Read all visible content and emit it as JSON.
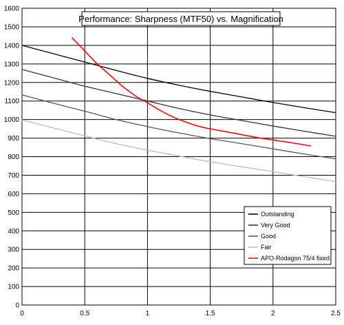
{
  "chart_data": {
    "type": "line",
    "title": "Performance: Sharpness (MTF50) vs. Magnification",
    "xlabel": "",
    "ylabel": "",
    "xlim": [
      0,
      2.5
    ],
    "ylim": [
      0,
      1600
    ],
    "x_ticks": [
      0,
      0.5,
      1,
      1.5,
      2,
      2.5
    ],
    "x_tick_labels": [
      "0",
      "0.5",
      "1",
      "1.5",
      "2",
      "2.5"
    ],
    "y_ticks": [
      0,
      100,
      200,
      300,
      400,
      500,
      600,
      700,
      800,
      900,
      1000,
      1100,
      1200,
      1300,
      1400,
      1500,
      1600
    ],
    "y_tick_labels": [
      "0",
      "100",
      "200",
      "300",
      "400",
      "500",
      "600",
      "700",
      "800",
      "900",
      "1000",
      "1100",
      "1200",
      "1300",
      "1400",
      "1500",
      "1600"
    ],
    "grid": true,
    "legend_position": "bottom-right",
    "series": [
      {
        "name": "Outstanding",
        "color": "#000000",
        "x": [
          0,
          0.25,
          0.5,
          0.75,
          1,
          1.25,
          1.5,
          1.75,
          2,
          2.25,
          2.5
        ],
        "y": [
          1400,
          1355,
          1310,
          1265,
          1222,
          1185,
          1152,
          1122,
          1092,
          1064,
          1037
        ]
      },
      {
        "name": "Very Good",
        "color": "#333333",
        "x": [
          0,
          0.25,
          0.5,
          0.75,
          1,
          1.25,
          1.5,
          1.75,
          2,
          2.25,
          2.5
        ],
        "y": [
          1270,
          1225,
          1180,
          1140,
          1100,
          1060,
          1025,
          995,
          965,
          937,
          910
        ]
      },
      {
        "name": "Good",
        "color": "#555555",
        "x": [
          0,
          0.25,
          0.5,
          0.75,
          1,
          1.25,
          1.5,
          1.75,
          2,
          2.25,
          2.5
        ],
        "y": [
          1133,
          1088,
          1045,
          1000,
          962,
          928,
          897,
          870,
          842,
          814,
          788
        ]
      },
      {
        "name": "Fair",
        "color": "#bbbbbb",
        "x": [
          0,
          0.25,
          0.5,
          0.75,
          1,
          1.25,
          1.5,
          1.75,
          2,
          2.25,
          2.5
        ],
        "y": [
          998,
          955,
          912,
          870,
          835,
          803,
          772,
          745,
          719,
          692,
          665
        ]
      },
      {
        "name": "APO-Rodagon 75/4 fixed",
        "color": "#ff0000",
        "x": [
          0.4,
          0.5,
          0.6,
          0.7,
          0.8,
          0.9,
          1.0,
          1.1,
          1.2,
          1.3,
          1.4,
          1.5,
          1.7,
          1.9,
          2.1,
          2.3
        ],
        "y": [
          1440,
          1370,
          1300,
          1240,
          1180,
          1130,
          1090,
          1050,
          1015,
          988,
          965,
          950,
          925,
          900,
          880,
          858
        ]
      }
    ]
  }
}
